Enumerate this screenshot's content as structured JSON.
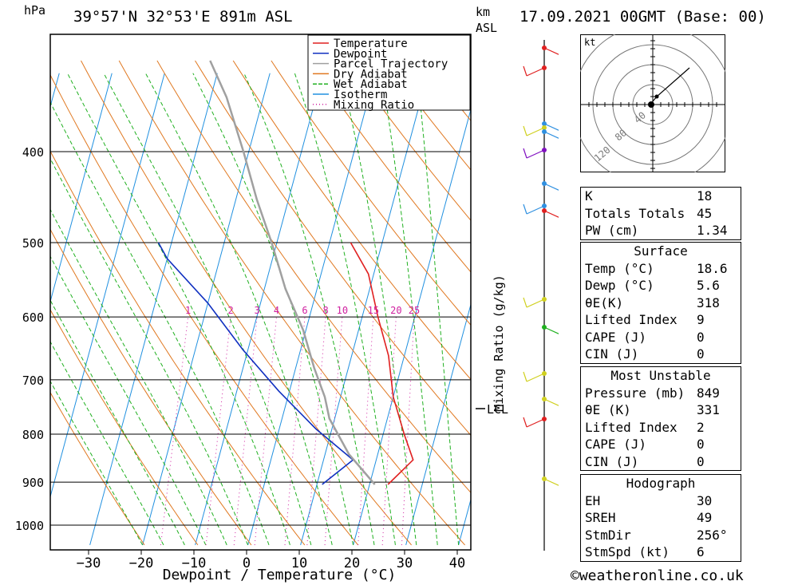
{
  "header": {
    "pressure_unit": "hPa",
    "location": "39°57'N 32°53'E 891m ASL",
    "km_label": "km",
    "asl_label": "ASL",
    "datetime": "17.09.2021 00GMT (Base: 00)"
  },
  "chart_data": {
    "type": "line",
    "xlabel": "Dewpoint / Temperature (°C)",
    "x_ticks": [
      -30,
      -20,
      -10,
      0,
      10,
      20,
      30,
      40
    ],
    "xlim": [
      -38,
      42
    ],
    "y_scale": "log-pressure",
    "y_ticks": [
      400,
      500,
      600,
      700,
      800,
      900,
      1000
    ],
    "ylim": [
      1050,
      330
    ],
    "right_axis_label": "Mixing Ratio (g/kg)",
    "mixing_ratio_labels": [
      "1",
      "2",
      "3",
      "4",
      "6",
      "8",
      "10",
      "15",
      "20",
      "25"
    ],
    "lcl_label": "LCL",
    "legend": [
      {
        "name": "Temperature",
        "color": "#e02020"
      },
      {
        "name": "Dewpoint",
        "color": "#1030c0"
      },
      {
        "name": "Parcel Trajectory",
        "color": "#a0a0a0"
      },
      {
        "name": "Dry Adiabat",
        "color": "#e07820"
      },
      {
        "name": "Wet Adiabat",
        "color": "#20b020"
      },
      {
        "name": "Isotherm",
        "color": "#2090e0"
      },
      {
        "name": "Mixing Ratio",
        "color": "#d020a0"
      }
    ],
    "series": [
      {
        "name": "Temperature",
        "color": "#e02020",
        "points": [
          [
            23.5,
            905
          ],
          [
            27,
            852
          ],
          [
            24,
            800
          ],
          [
            20,
            730
          ],
          [
            17,
            660
          ],
          [
            13,
            600
          ],
          [
            9,
            540
          ],
          [
            4,
            500
          ]
        ]
      },
      {
        "name": "Dewpoint",
        "color": "#1030c0",
        "points": [
          [
            11,
            905
          ],
          [
            15.6,
            852
          ],
          [
            7,
            790
          ],
          [
            -2,
            720
          ],
          [
            -11,
            650
          ],
          [
            -20,
            580
          ],
          [
            -30,
            520
          ],
          [
            -32.5,
            500
          ]
        ]
      },
      {
        "name": "Parcel Trajectory",
        "color": "#a0a0a0",
        "points": [
          [
            21,
            905
          ],
          [
            14.5,
            840
          ],
          [
            9,
            770
          ],
          [
            7,
            730
          ],
          [
            3.5,
            680
          ],
          [
            -0.5,
            620
          ],
          [
            -6,
            560
          ],
          [
            -11,
            500
          ],
          [
            -16,
            450
          ],
          [
            -21,
            400
          ],
          [
            -27,
            350
          ],
          [
            -32,
            320
          ]
        ]
      }
    ],
    "wind_profile_colors": [
      "#e02020",
      "#e02020",
      "#3090e0",
      "#d0d020",
      "#3090e0",
      "#8010c0",
      "#3090e0",
      "#3090e0",
      "#e02020",
      "#d0d020",
      "#20b020",
      "#d0d020",
      "#d0d020",
      "#e02020",
      "#d0d020"
    ]
  },
  "hodograph": {
    "unit": "kt",
    "ring_labels": [
      "40",
      "80",
      "120"
    ]
  },
  "indices": {
    "rows": [
      {
        "label": "K",
        "value": "18"
      },
      {
        "label": "Totals Totals",
        "value": "45"
      },
      {
        "label": "PW (cm)",
        "value": "1.34"
      }
    ]
  },
  "surface": {
    "title": "Surface",
    "rows": [
      {
        "label": "Temp (°C)",
        "value": "18.6"
      },
      {
        "label": "Dewp (°C)",
        "value": "5.6"
      },
      {
        "label": "θE(K)",
        "value": "318"
      },
      {
        "label": "Lifted Index",
        "value": "9"
      },
      {
        "label": "CAPE (J)",
        "value": "0"
      },
      {
        "label": "CIN (J)",
        "value": "0"
      }
    ]
  },
  "most_unstable": {
    "title": "Most Unstable",
    "rows": [
      {
        "label": "Pressure (mb)",
        "value": "849"
      },
      {
        "label": "θE (K)",
        "value": "331"
      },
      {
        "label": "Lifted Index",
        "value": "2"
      },
      {
        "label": "CAPE (J)",
        "value": "0"
      },
      {
        "label": "CIN (J)",
        "value": "0"
      }
    ]
  },
  "hodograph_table": {
    "title": "Hodograph",
    "rows": [
      {
        "label": "EH",
        "value": "30"
      },
      {
        "label": "SREH",
        "value": "49"
      },
      {
        "label": "StmDir",
        "value": "256°"
      },
      {
        "label": "StmSpd (kt)",
        "value": "6"
      }
    ]
  },
  "footer": {
    "copyright": "©weatheronline.co.uk"
  }
}
